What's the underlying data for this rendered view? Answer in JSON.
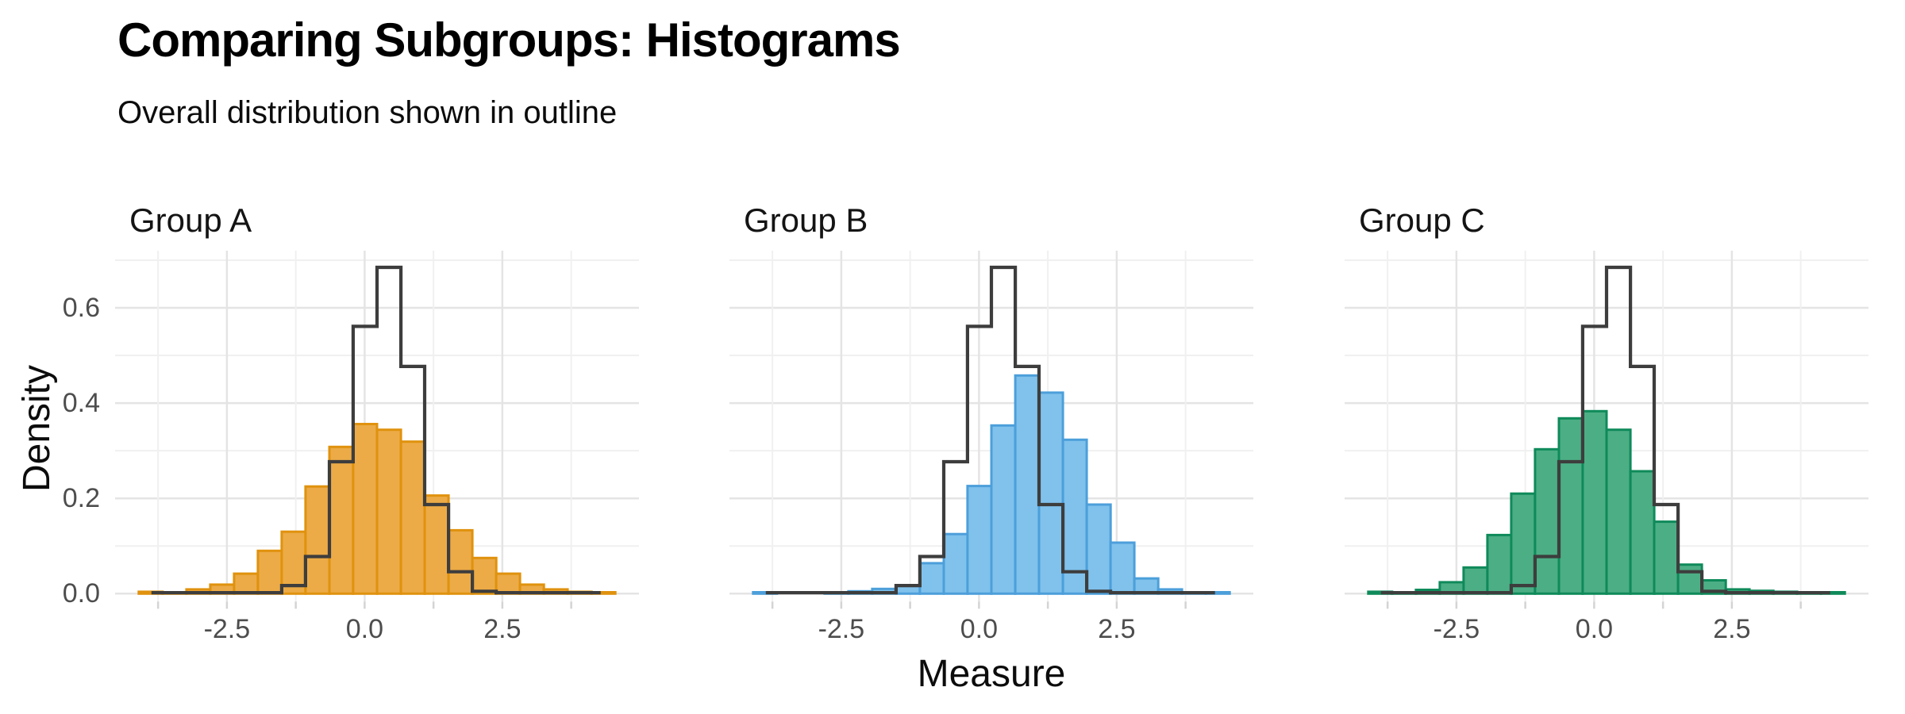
{
  "header": {
    "title": "Comparing Subgroups: Histograms",
    "subtitle": "Overall distribution shown in outline"
  },
  "colors": {
    "background": "#ffffff",
    "grid_major": "#e4e4e4",
    "grid_minor": "#f0f0f0",
    "tick_mark": "#d4d4d4",
    "tick_text": "#4d4d4d",
    "text": "#0c0c0c",
    "outline": "#3d3d3d"
  },
  "chart_data": {
    "type": "bar",
    "subtype": "faceted-histograms-with-overall-outline",
    "title": "Comparing Subgroups: Histograms",
    "subtitle": "Overall distribution shown in outline",
    "xlabel": "Measure",
    "ylabel": "Density",
    "legend": "none",
    "grid": "on",
    "xlim": [
      -4.53,
      4.98
    ],
    "ylim": [
      0,
      0.72
    ],
    "x_tick_positions": [
      -3.75,
      -2.5,
      -1.25,
      0,
      1.25,
      2.5,
      3.75
    ],
    "x_major_tick_positions": [
      -2.5,
      0,
      2.5
    ],
    "x_tick_labels": [
      "-2.5",
      "0.0",
      "2.5"
    ],
    "y_tick_positions": [
      0,
      0.2,
      0.4,
      0.6
    ],
    "y_tick_labels": [
      "0.0",
      "0.2",
      "0.4",
      "0.6"
    ],
    "y_gridline_positions": [
      0,
      0.1,
      0.2,
      0.3,
      0.4,
      0.5,
      0.6,
      0.7
    ],
    "bin_edges": [
      -4.1,
      -3.668,
      -3.235,
      -2.803,
      -2.37,
      -1.938,
      -1.505,
      -1.073,
      -0.64,
      -0.208,
      0.225,
      0.658,
      1.09,
      1.523,
      1.955,
      2.388,
      2.82,
      3.253,
      3.685,
      4.118,
      4.55
    ],
    "facets": [
      {
        "label": "Group A",
        "fill": "#ecab47",
        "stroke": "#e0920e",
        "values": [
          0.004,
          0.002,
          0.009,
          0.019,
          0.042,
          0.09,
          0.13,
          0.225,
          0.308,
          0.356,
          0.344,
          0.319,
          0.206,
          0.133,
          0.075,
          0.042,
          0.019,
          0.009,
          0.004,
          0.003
        ]
      },
      {
        "label": "Group B",
        "fill": "#80c2ec",
        "stroke": "#4c9fda",
        "values": [
          0.003,
          0,
          0,
          0.002,
          0.005,
          0.01,
          0.018,
          0.064,
          0.125,
          0.226,
          0.353,
          0.458,
          0.422,
          0.323,
          0.187,
          0.107,
          0.032,
          0.009,
          0.002,
          0.003
        ]
      },
      {
        "label": "Group C",
        "fill": "#4cae85",
        "stroke": "#0f8a5a",
        "values": [
          0.004,
          0.002,
          0.008,
          0.024,
          0.055,
          0.123,
          0.21,
          0.303,
          0.368,
          0.383,
          0.344,
          0.257,
          0.151,
          0.061,
          0.028,
          0.009,
          0.006,
          0.004,
          0.002,
          0.003
        ]
      }
    ],
    "overall_outline": {
      "name": "Overall distribution",
      "color": "#3d3d3d",
      "x_start": -3.87,
      "x_end": 4.284,
      "values": [
        0.002,
        0.002,
        0.002,
        0.002,
        0.002,
        0.002,
        0.017,
        0.078,
        0.277,
        0.561,
        0.685,
        0.477,
        0.187,
        0.046,
        0.005,
        0.002,
        0.002,
        0.002,
        0.002,
        0.002
      ]
    }
  },
  "layout_note": "three small-multiple panels sharing y axis"
}
